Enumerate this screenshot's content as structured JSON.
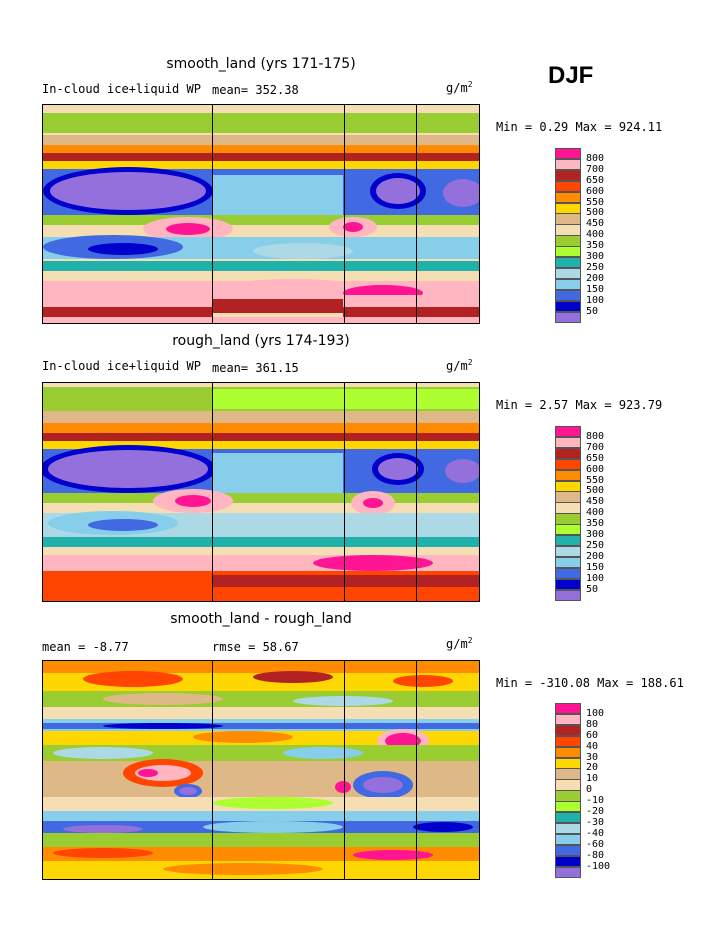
{
  "season": "DJF",
  "panels": [
    {
      "title": "smooth_land (yrs 171-175)",
      "variable": "In-cloud ice+liquid WP",
      "stat1": "mean= 352.38",
      "units_base": "g/m",
      "units_exp": "2",
      "minmax": "Min =   0.29 Max = 924.11",
      "levels": [
        "800",
        "700",
        "650",
        "600",
        "550",
        "500",
        "450",
        "400",
        "350",
        "300",
        "250",
        "200",
        "150",
        "100",
        "50"
      ],
      "colors": [
        "#ff1493",
        "#ffb6c1",
        "#b22222",
        "#ff4500",
        "#ff8c00",
        "#ffd700",
        "#deb887",
        "#f5deb3",
        "#9acd32",
        "#adff2f",
        "#20b2aa",
        "#add8e6",
        "#87ceeb",
        "#4169e1",
        "#0000cd",
        "#9370db"
      ]
    },
    {
      "title": "rough_land (yrs 174-193)",
      "variable": "In-cloud ice+liquid WP",
      "stat1": "mean= 361.15",
      "units_base": "g/m",
      "units_exp": "2",
      "minmax": "Min =   2.57 Max = 923.79",
      "levels": [
        "800",
        "700",
        "650",
        "600",
        "550",
        "500",
        "450",
        "400",
        "350",
        "300",
        "250",
        "200",
        "150",
        "100",
        "50"
      ],
      "colors": [
        "#ff1493",
        "#ffb6c1",
        "#b22222",
        "#ff4500",
        "#ff8c00",
        "#ffd700",
        "#deb887",
        "#f5deb3",
        "#9acd32",
        "#adff2f",
        "#20b2aa",
        "#add8e6",
        "#87ceeb",
        "#4169e1",
        "#0000cd",
        "#9370db"
      ]
    },
    {
      "title": "smooth_land - rough_land",
      "stat0": "mean =   -8.77",
      "stat1": "rmse =  58.67",
      "units_base": "g/m",
      "units_exp": "2",
      "minmax": "Min = -310.08 Max = 188.61",
      "levels": [
        "100",
        "80",
        "60",
        "40",
        "30",
        "20",
        "10",
        "0",
        "-10",
        "-20",
        "-30",
        "-40",
        "-60",
        "-80",
        "-100"
      ],
      "colors": [
        "#ff1493",
        "#ffb6c1",
        "#b22222",
        "#ff4500",
        "#ff8c00",
        "#ffd700",
        "#deb887",
        "#f5deb3",
        "#9acd32",
        "#adff2f",
        "#20b2aa",
        "#add8e6",
        "#87ceeb",
        "#4169e1",
        "#0000cd",
        "#9370db"
      ]
    }
  ],
  "chart_data": [
    {
      "type": "heatmap",
      "title": "smooth_land (yrs 171-175)",
      "variable": "In-cloud ice+liquid WP",
      "units": "g/m2",
      "mean": 352.38,
      "min": 0.29,
      "max": 924.11,
      "contour_levels": [
        50,
        100,
        150,
        200,
        250,
        300,
        350,
        400,
        450,
        500,
        550,
        600,
        650,
        700,
        800
      ]
    },
    {
      "type": "heatmap",
      "title": "rough_land (yrs 174-193)",
      "variable": "In-cloud ice+liquid WP",
      "units": "g/m2",
      "mean": 361.15,
      "min": 2.57,
      "max": 923.79,
      "contour_levels": [
        50,
        100,
        150,
        200,
        250,
        300,
        350,
        400,
        450,
        500,
        550,
        600,
        650,
        700,
        800
      ]
    },
    {
      "type": "heatmap",
      "title": "smooth_land - rough_land",
      "units": "g/m2",
      "mean": -8.77,
      "rmse": 58.67,
      "min": -310.08,
      "max": 188.61,
      "contour_levels": [
        -100,
        -80,
        -60,
        -40,
        -30,
        -20,
        -10,
        0,
        10,
        20,
        30,
        40,
        60,
        80,
        100
      ]
    }
  ]
}
